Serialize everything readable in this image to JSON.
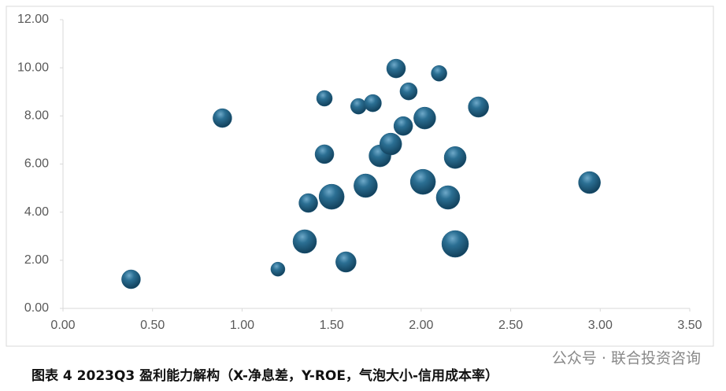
{
  "chart_data": {
    "type": "scatter",
    "caption": "图表 4 2023Q3 盈利能力解构（X-净息差，Y-ROE，气泡大小-信用成本率）",
    "watermark": "公众号 · 联合投资咨询",
    "color": "#1d5a7c",
    "x": [
      0.38,
      0.89,
      1.2,
      1.35,
      1.37,
      1.46,
      1.46,
      1.5,
      1.58,
      1.65,
      1.69,
      1.73,
      1.77,
      1.83,
      1.86,
      1.9,
      1.93,
      2.01,
      2.02,
      2.1,
      2.15,
      2.19,
      2.19,
      2.32,
      2.94
    ],
    "values": [
      1.21,
      7.91,
      1.63,
      2.78,
      4.38,
      8.73,
      6.41,
      4.64,
      1.93,
      8.4,
      5.1,
      8.53,
      6.34,
      6.83,
      9.97,
      7.58,
      9.02,
      5.26,
      7.91,
      9.77,
      4.61,
      6.27,
      2.68,
      8.37,
      5.23
    ],
    "sizes": [
      12,
      12,
      9,
      15,
      12,
      10,
      12,
      16,
      13,
      10,
      15,
      11,
      14,
      14,
      12,
      12,
      11,
      16,
      14,
      10,
      15,
      14,
      17,
      13,
      14
    ],
    "xlim": [
      0,
      3.5
    ],
    "ylim": [
      0,
      12
    ],
    "xticks": [
      {
        "value": 0,
        "label": "0.00"
      },
      {
        "value": 0.5,
        "label": "0.50"
      },
      {
        "value": 1,
        "label": "1.00"
      },
      {
        "value": 1.5,
        "label": "1.50"
      },
      {
        "value": 2,
        "label": "2.00"
      },
      {
        "value": 2.5,
        "label": "2.50"
      },
      {
        "value": 3,
        "label": "3.00"
      },
      {
        "value": 3.5,
        "label": "3.50"
      }
    ],
    "yticks": [
      {
        "value": 0,
        "label": "0.00"
      },
      {
        "value": 2,
        "label": "2.00"
      },
      {
        "value": 4,
        "label": "4.00"
      },
      {
        "value": 6,
        "label": "6.00"
      },
      {
        "value": 8,
        "label": "8.00"
      },
      {
        "value": 10,
        "label": "10.00"
      },
      {
        "value": 12,
        "label": "12.00"
      }
    ]
  }
}
